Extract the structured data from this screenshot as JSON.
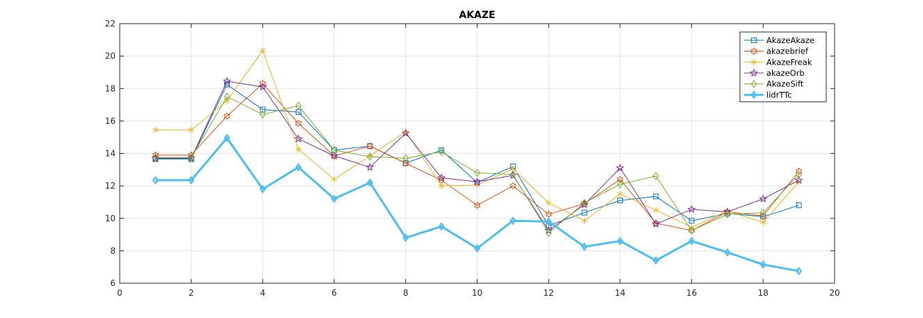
{
  "chart_data": {
    "type": "line",
    "title": "AKAZE",
    "xlabel": "",
    "ylabel": "",
    "xlim": [
      0,
      20
    ],
    "ylim": [
      6,
      22
    ],
    "xticks": [
      0,
      2,
      4,
      6,
      8,
      10,
      12,
      14,
      16,
      18,
      20
    ],
    "yticks": [
      6,
      8,
      10,
      12,
      14,
      16,
      18,
      20,
      22
    ],
    "grid": true,
    "legend_position": "top-right",
    "x": [
      1,
      2,
      3,
      4,
      5,
      6,
      7,
      8,
      9,
      10,
      11,
      12,
      13,
      14,
      15,
      16,
      17,
      18,
      19
    ],
    "series": [
      {
        "name": "AkazeAkaze",
        "color": "#0072BD",
        "marker": "square",
        "values": [
          13.65,
          13.65,
          18.25,
          16.7,
          16.55,
          14.2,
          14.45,
          13.4,
          14.2,
          12.2,
          13.2,
          9.55,
          10.35,
          11.1,
          11.35,
          9.85,
          10.3,
          10.1,
          10.8
        ]
      },
      {
        "name": "akazebrief",
        "color": "#D95319",
        "marker": "hexagram",
        "values": [
          13.9,
          13.9,
          16.3,
          18.3,
          15.85,
          13.85,
          14.45,
          13.4,
          12.35,
          10.8,
          12.0,
          10.25,
          10.9,
          12.4,
          9.7,
          9.25,
          10.4,
          10.15,
          12.9
        ]
      },
      {
        "name": "AkazeFreak",
        "color": "#EDB120",
        "marker": "asterisk",
        "values": [
          15.45,
          15.45,
          17.25,
          20.35,
          14.25,
          12.4,
          13.85,
          15.35,
          12.0,
          12.05,
          13.05,
          10.95,
          9.85,
          11.5,
          10.5,
          9.45,
          10.45,
          9.75,
          12.25
        ]
      },
      {
        "name": "akazeOrb",
        "color": "#7E2F8E",
        "marker": "pentagram",
        "values": [
          13.7,
          13.7,
          18.45,
          18.1,
          14.9,
          13.85,
          13.15,
          15.25,
          12.5,
          12.25,
          12.65,
          9.25,
          10.85,
          13.1,
          9.65,
          10.55,
          10.4,
          11.2,
          12.35
        ]
      },
      {
        "name": "AkazeSift",
        "color": "#77AC30",
        "marker": "diamond",
        "values": [
          13.75,
          13.75,
          17.5,
          16.4,
          16.95,
          14.2,
          13.8,
          13.7,
          14.1,
          12.8,
          12.7,
          9.1,
          10.95,
          12.1,
          12.6,
          9.25,
          10.25,
          10.35,
          12.7
        ]
      },
      {
        "name": "lidrTTc",
        "color": "#4DBEEE",
        "marker": "diamond",
        "thick": true,
        "values": [
          12.35,
          12.35,
          14.95,
          11.8,
          13.15,
          11.2,
          12.2,
          8.8,
          9.5,
          8.15,
          9.85,
          9.8,
          8.25,
          8.6,
          7.4,
          8.6,
          7.9,
          7.15,
          6.75
        ]
      }
    ]
  }
}
